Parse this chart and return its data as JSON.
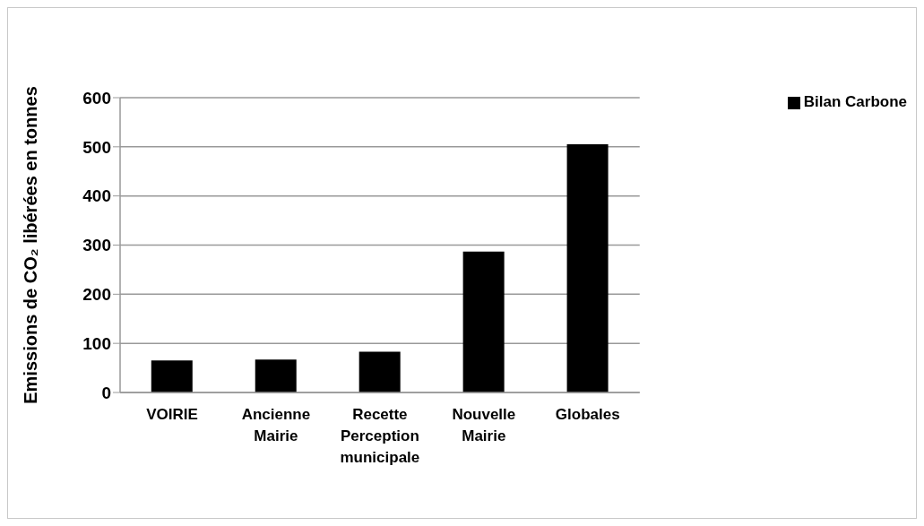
{
  "chart_data": {
    "type": "bar",
    "ylabel": "Emissions de CO₂ libérées en tonnes",
    "categories": [
      "VOIRIE",
      "Ancienne Mairie",
      "Recette Perception municipale",
      "Nouvelle Mairie",
      "Globales"
    ],
    "series": [
      {
        "name": "Bilan Carbone",
        "color": "#000000",
        "values": [
          65,
          67,
          83,
          287,
          505
        ]
      }
    ],
    "ylim": [
      0,
      600
    ],
    "yticks": [
      0,
      100,
      200,
      300,
      400,
      500,
      600
    ],
    "grid": "y",
    "legend": "right"
  }
}
